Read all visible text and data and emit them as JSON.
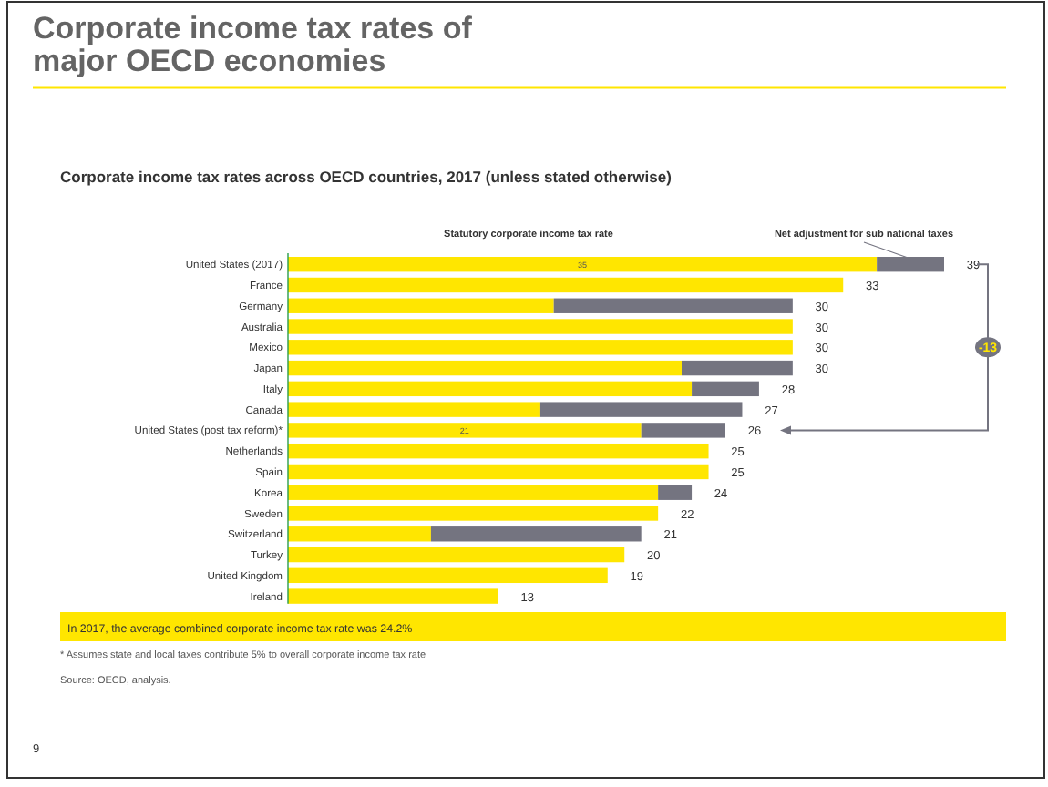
{
  "chart_data": {
    "type": "bar",
    "orientation": "horizontal",
    "stacked": true,
    "legend": "top",
    "title": "Corporate income tax rates of major OECD economies",
    "subtitle": "Corporate income tax rates across OECD countries, 2017 (unless stated otherwise)",
    "categories": [
      "United States (2017)",
      "France",
      "Germany",
      "Australia",
      "Mexico",
      "Japan",
      "Italy",
      "Canada",
      "United States (post tax reform)*",
      "Netherlands",
      "Spain",
      "Korea",
      "Sweden",
      "Switzerland",
      "Turkey",
      "United Kingdom",
      "Ireland"
    ],
    "series": [
      {
        "name": "Statutory corporate income tax rate",
        "color": "#ffe600",
        "values": [
          35,
          33,
          15.8,
          30,
          30,
          23.4,
          24,
          15,
          21,
          25,
          25,
          22,
          22,
          8.5,
          20,
          19,
          12.5
        ],
        "value_labels": [
          "35",
          null,
          null,
          null,
          null,
          null,
          null,
          null,
          "21",
          null,
          null,
          null,
          null,
          null,
          null,
          null,
          null
        ]
      },
      {
        "name": "Net adjustment for sub national taxes",
        "color": "#747480",
        "values": [
          4,
          0,
          14.2,
          0,
          0,
          6.6,
          4,
          12,
          5,
          0,
          0,
          2,
          0,
          12.5,
          0,
          0,
          0
        ]
      }
    ],
    "totals": [
      "39",
      "33",
      "30",
      "30",
      "30",
      "30",
      "28",
      "27",
      "26",
      "25",
      "25",
      "24",
      "22",
      "21",
      "20",
      "19",
      "13"
    ],
    "annotations": [
      "-13",
      "In 2017, the average combined corporate income tax rate was 24.2%",
      "* Assumes state and local taxes contribute 5% to overall corporate income tax rate",
      "Source: OECD, analysis.",
      "9"
    ]
  }
}
